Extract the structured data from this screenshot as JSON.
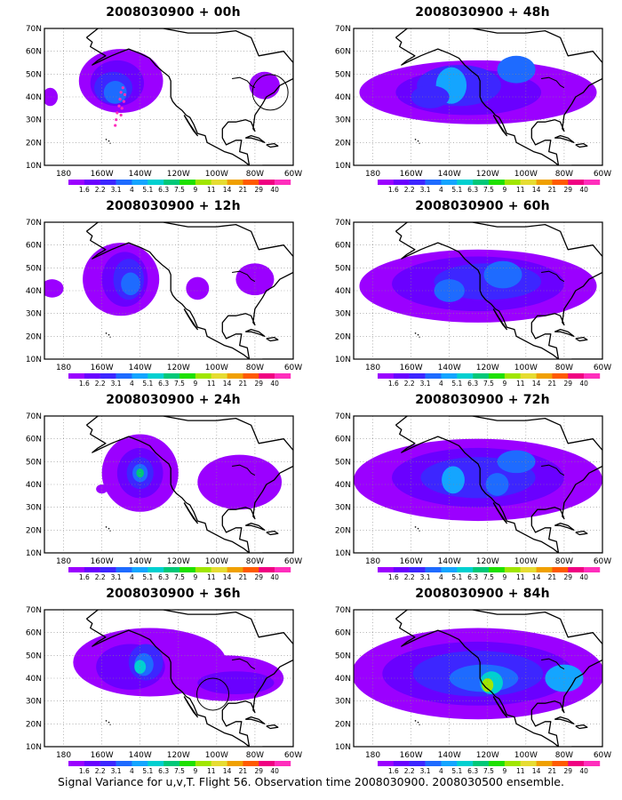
{
  "panels": [
    {
      "title": "2008030900 + 00h",
      "lead": "00h"
    },
    {
      "title": "2008030900 + 12h",
      "lead": "12h"
    },
    {
      "title": "2008030900 + 24h",
      "lead": "24h"
    },
    {
      "title": "2008030900 + 36h",
      "lead": "36h"
    },
    {
      "title": "2008030900 + 48h",
      "lead": "48h"
    },
    {
      "title": "2008030900 + 60h",
      "lead": "60h"
    },
    {
      "title": "2008030900 + 72h",
      "lead": "72h"
    },
    {
      "title": "2008030900 + 84h",
      "lead": "84h"
    }
  ],
  "lat_labels": [
    "70N",
    "60N",
    "50N",
    "40N",
    "30N",
    "20N",
    "10N"
  ],
  "lon_labels": [
    "180",
    "160W",
    "140W",
    "120W",
    "100W",
    "80W",
    "60W"
  ],
  "colorbar": {
    "labels": [
      "1.6",
      "2.2",
      "3.1",
      "4",
      "5.1",
      "6.3",
      "7.5",
      "9",
      "11",
      "14",
      "21",
      "29",
      "40"
    ],
    "colors": [
      "#9b00ff",
      "#6a00ff",
      "#3d26ff",
      "#1e6bff",
      "#14a5ff",
      "#00d0d0",
      "#00c878",
      "#1ee000",
      "#a0e600",
      "#e6dc32",
      "#f0a000",
      "#ff5a00",
      "#f00082",
      "#ff2ebc"
    ]
  },
  "caption": "Signal Variance for u,v,T. Flight 56. Observation time 2008030900. 2008030500 ensemble."
}
